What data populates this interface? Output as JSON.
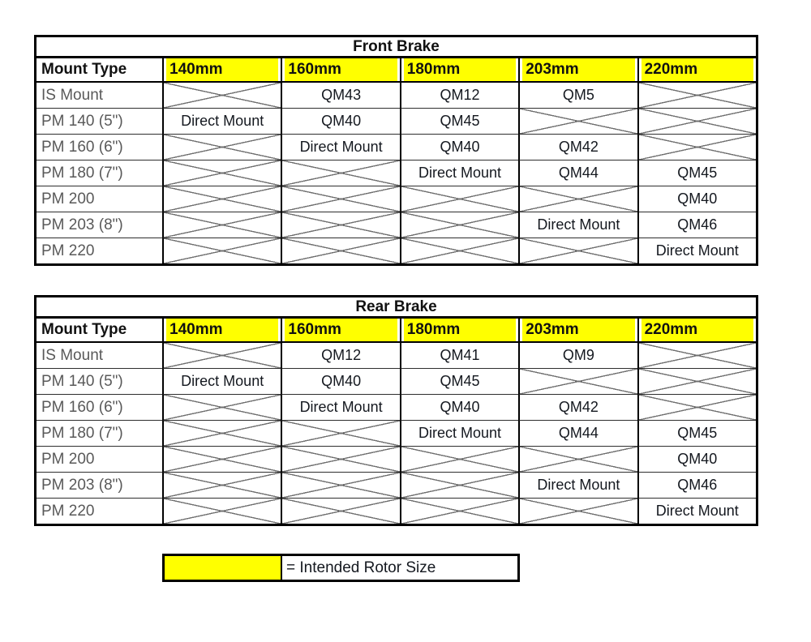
{
  "na_marker": "X",
  "colors": {
    "highlight_yellow": "#FFFF00",
    "border_black": "#000000",
    "row_label_gray": "#595959"
  },
  "front_table": {
    "title": "Front Brake",
    "columns": [
      "Mount Type",
      "140mm",
      "160mm",
      "180mm",
      "203mm",
      "220mm"
    ],
    "rows": [
      {
        "label": "IS Mount",
        "cells": [
          "X",
          "QM43",
          "QM12",
          "QM5",
          "X"
        ]
      },
      {
        "label": "PM 140 (5\")",
        "cells": [
          "Direct Mount",
          "QM40",
          "QM45",
          "X",
          "X"
        ]
      },
      {
        "label": "PM 160 (6\")",
        "cells": [
          "X",
          "Direct Mount",
          "QM40",
          "QM42",
          "X"
        ]
      },
      {
        "label": "PM 180 (7\")",
        "cells": [
          "X",
          "X",
          "Direct Mount",
          "QM44",
          "QM45"
        ]
      },
      {
        "label": "PM 200",
        "cells": [
          "X",
          "X",
          "X",
          "X",
          "QM40"
        ]
      },
      {
        "label": "PM 203 (8\")",
        "cells": [
          "X",
          "X",
          "X",
          "Direct Mount",
          "QM46"
        ]
      },
      {
        "label": "PM 220",
        "cells": [
          "X",
          "X",
          "X",
          "X",
          "Direct Mount"
        ]
      }
    ]
  },
  "rear_table": {
    "title": "Rear Brake",
    "columns": [
      "Mount Type",
      "140mm",
      "160mm",
      "180mm",
      "203mm",
      "220mm"
    ],
    "rows": [
      {
        "label": "IS Mount",
        "cells": [
          "X",
          "QM12",
          "QM41",
          "QM9",
          "X"
        ]
      },
      {
        "label": "PM 140 (5\")",
        "cells": [
          "Direct Mount",
          "QM40",
          "QM45",
          "X",
          "X"
        ]
      },
      {
        "label": "PM 160 (6\")",
        "cells": [
          "X",
          "Direct Mount",
          "QM40",
          "QM42",
          "X"
        ]
      },
      {
        "label": "PM 180 (7\")",
        "cells": [
          "X",
          "X",
          "Direct Mount",
          "QM44",
          "QM45"
        ]
      },
      {
        "label": "PM 200",
        "cells": [
          "X",
          "X",
          "X",
          "X",
          "QM40"
        ]
      },
      {
        "label": "PM 203 (8\")",
        "cells": [
          "X",
          "X",
          "X",
          "Direct Mount",
          "QM46"
        ]
      },
      {
        "label": "PM 220",
        "cells": [
          "X",
          "X",
          "X",
          "X",
          "Direct Mount"
        ]
      }
    ]
  },
  "legend": {
    "swatch_color": "#FFFF00",
    "label": "= Intended Rotor Size"
  }
}
